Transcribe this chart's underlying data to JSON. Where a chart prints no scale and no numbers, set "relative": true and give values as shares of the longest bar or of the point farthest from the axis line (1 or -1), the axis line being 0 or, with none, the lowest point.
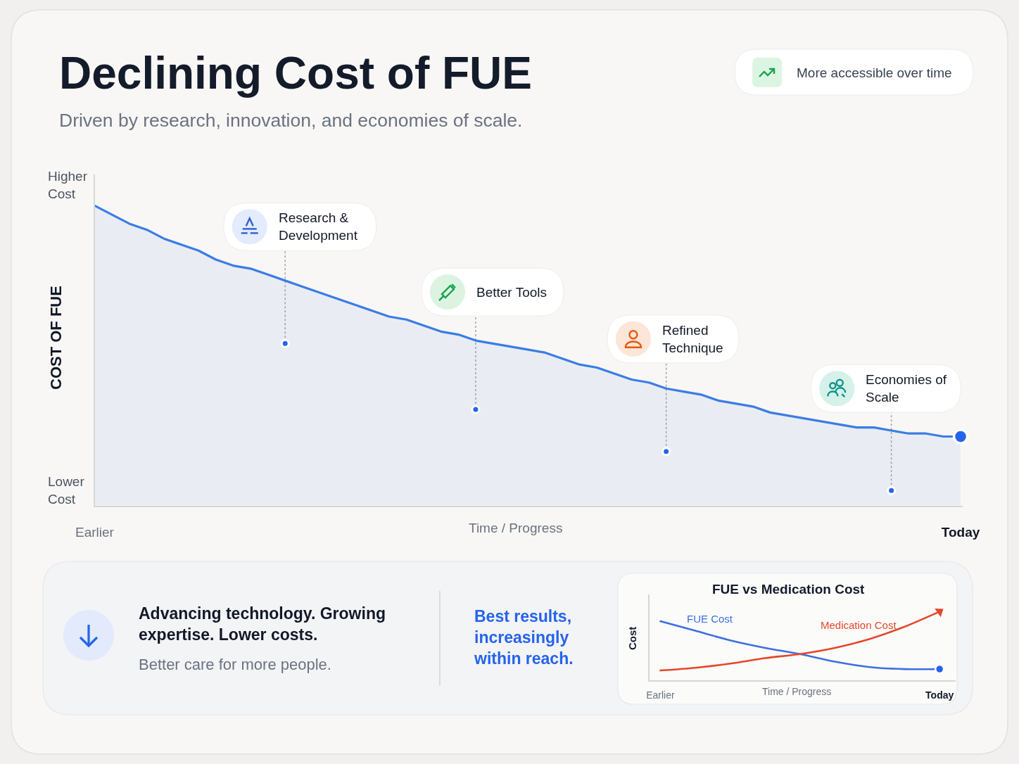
{
  "chart_data": [
    {
      "type": "area",
      "title": "Declining Cost of FUE",
      "subtitle": "Driven by research, innovation, and economies of scale.",
      "xlabel": "Time / Progress",
      "ylabel": "COST OF FUE",
      "relative": true,
      "annotations": [
        "Higher Cost",
        "Lower Cost",
        "More accessible over time",
        "Research & Development",
        "Better Tools",
        "Refined Technique",
        "Economies of Scale"
      ],
      "categories": [
        "Earlier",
        null,
        null,
        null,
        null,
        null,
        null,
        null,
        null,
        null,
        null,
        null,
        null,
        null,
        null,
        null,
        null,
        null,
        null,
        null,
        null,
        null,
        null,
        null,
        null,
        null,
        null,
        null,
        null,
        null,
        null,
        null,
        null,
        null,
        null,
        null,
        null,
        null,
        null,
        null,
        null,
        null,
        null,
        null,
        null,
        null,
        null,
        null,
        null,
        null,
        "Today"
      ],
      "series": [
        {
          "color": "#3b7de4",
          "values": [
            1,
            0.97,
            0.94,
            0.92,
            0.89,
            0.87,
            0.85,
            0.82,
            0.8,
            0.79,
            0.77,
            0.75,
            0.73,
            0.71,
            0.69,
            0.67,
            0.65,
            0.63,
            0.62,
            0.6,
            0.58,
            0.57,
            0.55,
            0.54,
            0.53,
            0.52,
            0.51,
            0.49,
            0.47,
            0.46,
            0.44,
            0.42,
            0.41,
            0.39,
            0.38,
            0.37,
            0.35,
            0.34,
            0.33,
            0.31,
            0.3,
            0.29,
            0.28,
            0.27,
            0.26,
            0.26,
            0.25,
            0.24,
            0.24,
            0.23,
            0.23
          ]
        },
        {
          "type": "scatter",
          "marker": "circle",
          "color": "#2563eb",
          "values": [
            null,
            null,
            null,
            null,
            null,
            null,
            null,
            null,
            null,
            null,
            null,
            0.54,
            null,
            null,
            null,
            null,
            null,
            null,
            null,
            null,
            null,
            null,
            0.32,
            null,
            null,
            null,
            null,
            null,
            null,
            null,
            null,
            null,
            null,
            0.18,
            null,
            null,
            null,
            null,
            null,
            null,
            null,
            null,
            null,
            null,
            null,
            null,
            0.05,
            null,
            null,
            null,
            null
          ]
        },
        {
          "type": "scatter",
          "marker": "circle",
          "color": "#2563eb",
          "values": [
            null,
            null,
            null,
            null,
            null,
            null,
            null,
            null,
            null,
            null,
            null,
            null,
            null,
            null,
            null,
            null,
            null,
            null,
            null,
            null,
            null,
            null,
            null,
            null,
            null,
            null,
            null,
            null,
            null,
            null,
            null,
            null,
            null,
            null,
            null,
            null,
            null,
            null,
            null,
            null,
            null,
            null,
            null,
            null,
            null,
            null,
            null,
            null,
            null,
            null,
            0.23
          ]
        }
      ]
    },
    {
      "type": "other",
      "title": "Advancing technology. Growing expertise. Lower costs.",
      "subtitle": "Better care for more people.",
      "annotations": [
        "Best results, increasingly within reach."
      ]
    },
    {
      "type": "line",
      "title": "FUE vs Medication Cost",
      "xlabel": "Time / Progress",
      "ylabel": "Cost",
      "relative": true,
      "categories": [
        "Earlier",
        null,
        null,
        null,
        null,
        null,
        null,
        null,
        "Today"
      ],
      "series": [
        {
          "name": "FUE Cost",
          "color": "#3d6fe0",
          "values": [
            0.86,
            0.72,
            0.58,
            0.47,
            0.38,
            0.27,
            0.19,
            0.16,
            0.16
          ]
        },
        {
          "name": "Medication Cost",
          "color": "#e4472b",
          "values": [
            0.14,
            0.18,
            0.24,
            0.32,
            0.38,
            0.47,
            0.6,
            0.78,
            1
          ]
        },
        {
          "type": "scatter",
          "marker": "circle",
          "color": "#2563eb",
          "values": [
            null,
            null,
            null,
            null,
            null,
            null,
            null,
            null,
            0.16
          ]
        },
        {
          "type": "scatter",
          "marker": "triangle",
          "color": "#e4472b",
          "values": [
            null,
            null,
            null,
            null,
            null,
            null,
            null,
            null,
            1
          ]
        }
      ]
    }
  ]
}
